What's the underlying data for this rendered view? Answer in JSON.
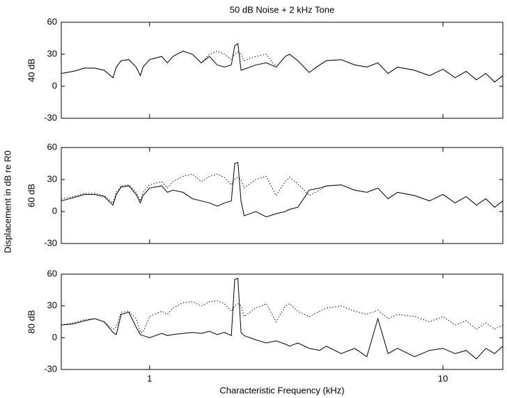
{
  "chart_data": [
    {
      "type": "line",
      "title": "50 dB Noise + 2 kHz Tone",
      "ylabel": "40 dB",
      "xscale": "log",
      "xlim": [
        0.5,
        16
      ],
      "xticks": [
        1,
        10
      ],
      "ylim": [
        -30,
        60
      ],
      "yticks": [
        -30,
        0,
        30,
        60
      ],
      "x": [
        0.5,
        0.55,
        0.6,
        0.65,
        0.7,
        0.75,
        0.77,
        0.8,
        0.85,
        0.9,
        0.93,
        0.95,
        1.0,
        1.1,
        1.15,
        1.2,
        1.3,
        1.4,
        1.5,
        1.6,
        1.7,
        1.8,
        1.9,
        1.95,
        2.0,
        2.05,
        2.1,
        2.3,
        2.5,
        2.7,
        2.9,
        3.0,
        3.2,
        3.5,
        3.8,
        4.0,
        4.5,
        5,
        5.5,
        6,
        6.5,
        7,
        8,
        9,
        10,
        11,
        12,
        13,
        14,
        15,
        16
      ],
      "series": [
        {
          "color": "#000000",
          "dash": "solid",
          "values": [
            12,
            14,
            17,
            17,
            15,
            8,
            18,
            24,
            25,
            18,
            10,
            18,
            25,
            28,
            22,
            28,
            33,
            30,
            22,
            28,
            20,
            18,
            20,
            38,
            40,
            15,
            16,
            20,
            22,
            18,
            28,
            30,
            24,
            13,
            20,
            24,
            25,
            20,
            18,
            22,
            12,
            18,
            15,
            10,
            16,
            8,
            14,
            6,
            12,
            4,
            10
          ]
        },
        {
          "color": "#000000",
          "dash": "dotted",
          "values": [
            12,
            14,
            17,
            17,
            15,
            8,
            18,
            24,
            25,
            18,
            10,
            18,
            25,
            28,
            22,
            28,
            33,
            30,
            22,
            30,
            33,
            30,
            25,
            30,
            32,
            30,
            24,
            28,
            30,
            18,
            28,
            30,
            24,
            13,
            20,
            24,
            25,
            20,
            18,
            22,
            12,
            18,
            15,
            10,
            16,
            8,
            14,
            6,
            12,
            4,
            10
          ]
        }
      ]
    },
    {
      "type": "line",
      "ylabel": "60 dB",
      "shared_ylabel": "Displacement in dB re R0",
      "xscale": "log",
      "xlim": [
        0.5,
        16
      ],
      "xticks": [
        1,
        10
      ],
      "ylim": [
        -30,
        60
      ],
      "yticks": [
        -30,
        0,
        30,
        60
      ],
      "x": [
        0.5,
        0.55,
        0.6,
        0.65,
        0.7,
        0.75,
        0.77,
        0.8,
        0.85,
        0.9,
        0.93,
        0.95,
        1.0,
        1.1,
        1.15,
        1.2,
        1.3,
        1.4,
        1.5,
        1.6,
        1.7,
        1.8,
        1.9,
        1.95,
        2.0,
        2.05,
        2.1,
        2.3,
        2.5,
        2.7,
        2.9,
        3.0,
        3.2,
        3.5,
        3.8,
        4.0,
        4.5,
        5,
        5.5,
        6,
        6.5,
        7,
        8,
        9,
        10,
        11,
        12,
        13,
        14,
        15,
        16
      ],
      "series": [
        {
          "color": "#000000",
          "dash": "solid",
          "values": [
            10,
            13,
            16,
            16,
            14,
            6,
            16,
            23,
            24,
            16,
            8,
            15,
            22,
            24,
            18,
            20,
            18,
            12,
            10,
            8,
            5,
            8,
            10,
            45,
            46,
            10,
            -4,
            0,
            -5,
            -2,
            0,
            2,
            4,
            20,
            22,
            24,
            25,
            20,
            18,
            22,
            12,
            18,
            15,
            10,
            16,
            8,
            14,
            6,
            12,
            4,
            10
          ]
        },
        {
          "color": "#000000",
          "dash": "dotted",
          "values": [
            12,
            14,
            17,
            17,
            15,
            8,
            18,
            24,
            25,
            18,
            10,
            18,
            25,
            28,
            22,
            28,
            33,
            35,
            28,
            33,
            35,
            32,
            25,
            30,
            32,
            30,
            22,
            30,
            33,
            15,
            28,
            32,
            26,
            15,
            20,
            24,
            25,
            20,
            18,
            22,
            12,
            18,
            15,
            10,
            16,
            8,
            14,
            6,
            12,
            4,
            10
          ]
        }
      ]
    },
    {
      "type": "line",
      "ylabel": "80 dB",
      "xlabel": "Characteristic Frequency (kHz)",
      "xscale": "log",
      "xlim": [
        0.5,
        16
      ],
      "xticks": [
        1,
        10
      ],
      "ylim": [
        -30,
        60
      ],
      "yticks": [
        -30,
        0,
        30,
        60
      ],
      "x": [
        0.5,
        0.55,
        0.6,
        0.65,
        0.7,
        0.75,
        0.77,
        0.8,
        0.85,
        0.9,
        0.93,
        0.95,
        1.0,
        1.1,
        1.15,
        1.2,
        1.3,
        1.4,
        1.5,
        1.6,
        1.7,
        1.8,
        1.9,
        1.95,
        2.0,
        2.05,
        2.1,
        2.3,
        2.5,
        2.7,
        2.9,
        3.0,
        3.2,
        3.5,
        3.8,
        4.0,
        4.5,
        5,
        5.5,
        6,
        6.5,
        7,
        8,
        9,
        10,
        11,
        12,
        13,
        14,
        15,
        16
      ],
      "series": [
        {
          "color": "#000000",
          "dash": "solid",
          "values": [
            12,
            13,
            16,
            18,
            15,
            5,
            3,
            22,
            24,
            10,
            3,
            2,
            0,
            4,
            2,
            3,
            4,
            5,
            4,
            6,
            3,
            5,
            2,
            55,
            56,
            5,
            2,
            -2,
            -5,
            -3,
            -6,
            -8,
            -5,
            -10,
            -12,
            -8,
            -15,
            -10,
            -18,
            18,
            -15,
            -10,
            -18,
            -12,
            -10,
            -15,
            -12,
            -20,
            -10,
            -15,
            -8
          ]
        },
        {
          "color": "#000000",
          "dash": "dotted",
          "values": [
            12,
            14,
            17,
            18,
            15,
            8,
            10,
            24,
            25,
            18,
            5,
            5,
            20,
            25,
            22,
            28,
            33,
            34,
            30,
            34,
            35,
            32,
            25,
            30,
            32,
            30,
            20,
            28,
            32,
            15,
            30,
            32,
            25,
            20,
            25,
            28,
            30,
            25,
            22,
            26,
            18,
            22,
            20,
            15,
            20,
            12,
            16,
            8,
            14,
            8,
            12
          ]
        }
      ]
    }
  ]
}
